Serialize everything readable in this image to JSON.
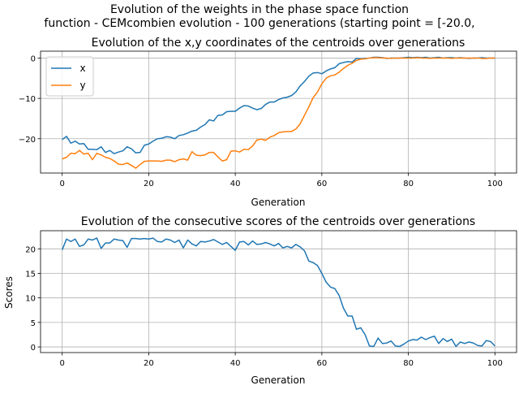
{
  "figure": {
    "suptitle_line1": "Evolution of the weights in the phase space  function",
    "suptitle_line2": "function - CEMcombien evolution - 100 generations (starting point = [-20.0,"
  },
  "chart_data": [
    {
      "type": "line",
      "title": "Evolution of the x,y coordinates of the centroids over generations",
      "xlabel": "Generation",
      "ylabel": "",
      "xlim": [
        -5,
        105
      ],
      "ylim": [
        -28.5,
        1.7
      ],
      "xticks": [
        0,
        20,
        40,
        60,
        80,
        100
      ],
      "yticks": [
        0,
        -10,
        -20
      ],
      "ytick_labels": [
        "0",
        "−10",
        "−20"
      ],
      "grid": true,
      "legend_position": "upper-left",
      "x": [
        0,
        1,
        2,
        3,
        4,
        5,
        6,
        7,
        8,
        9,
        10,
        11,
        12,
        13,
        14,
        15,
        16,
        17,
        18,
        19,
        20,
        21,
        22,
        23,
        24,
        25,
        26,
        27,
        28,
        29,
        30,
        31,
        32,
        33,
        34,
        35,
        36,
        37,
        38,
        39,
        40,
        41,
        42,
        43,
        44,
        45,
        46,
        47,
        48,
        49,
        50,
        51,
        52,
        53,
        54,
        55,
        56,
        57,
        58,
        59,
        60,
        61,
        62,
        63,
        64,
        65,
        66,
        67,
        68,
        69,
        70,
        71,
        72,
        73,
        74,
        75,
        76,
        77,
        78,
        79,
        80,
        81,
        82,
        83,
        84,
        85,
        86,
        87,
        88,
        89,
        90,
        91,
        92,
        93,
        94,
        95,
        96,
        97,
        98,
        99,
        100
      ],
      "series": [
        {
          "name": "x",
          "color": "#1f77b4",
          "values": [
            -20.2,
            -19.4,
            -21.1,
            -20.6,
            -21.3,
            -21.2,
            -22.6,
            -22.6,
            -22.7,
            -22.0,
            -23.4,
            -22.9,
            -23.7,
            -23.3,
            -23.0,
            -22.0,
            -22.5,
            -23.5,
            -23.4,
            -21.6,
            -21.3,
            -20.6,
            -20.0,
            -19.9,
            -19.5,
            -19.6,
            -20.0,
            -19.2,
            -19.0,
            -18.6,
            -18.1,
            -17.9,
            -17.1,
            -16.5,
            -15.3,
            -15.6,
            -14.2,
            -14.1,
            -13.3,
            -13.2,
            -13.2,
            -12.4,
            -11.8,
            -11.9,
            -12.4,
            -12.8,
            -12.5,
            -11.5,
            -10.9,
            -10.9,
            -10.3,
            -9.9,
            -9.7,
            -9.3,
            -8.4,
            -6.9,
            -5.8,
            -4.5,
            -3.7,
            -3.6,
            -3.9,
            -3.2,
            -2.7,
            -2.4,
            -1.4,
            -1.1,
            -0.9,
            -1.0,
            -0.1,
            -0.2,
            -0.1,
            0.0,
            0.2,
            0.2,
            0.1,
            -0.1,
            0.0,
            0.0,
            0.0,
            0.1,
            0.2,
            0.1,
            0.2,
            0.1,
            0.2,
            0.0,
            0.1,
            0.2,
            0.0,
            0.1,
            0.1,
            0.0,
            0.1,
            0.0,
            -0.1,
            0.0,
            0.0,
            0.1,
            0.0,
            0.0,
            0.0
          ]
        },
        {
          "name": "y",
          "color": "#ff7f0e",
          "values": [
            -25.0,
            -24.6,
            -23.6,
            -23.7,
            -22.9,
            -23.8,
            -23.6,
            -25.2,
            -23.6,
            -24.0,
            -24.6,
            -24.9,
            -25.5,
            -26.3,
            -26.4,
            -26.0,
            -26.6,
            -27.3,
            -26.4,
            -25.6,
            -25.5,
            -25.5,
            -25.5,
            -25.6,
            -25.3,
            -25.3,
            -25.7,
            -25.2,
            -25.0,
            -25.3,
            -23.2,
            -24.1,
            -24.2,
            -24.0,
            -23.4,
            -23.4,
            -24.5,
            -25.5,
            -25.2,
            -23.1,
            -23.0,
            -23.3,
            -22.6,
            -22.7,
            -21.8,
            -20.3,
            -20.1,
            -20.4,
            -19.6,
            -19.2,
            -18.5,
            -18.3,
            -18.2,
            -18.2,
            -17.6,
            -16.3,
            -14.2,
            -12.1,
            -9.8,
            -8.4,
            -6.4,
            -5.0,
            -4.4,
            -4.2,
            -3.5,
            -2.6,
            -1.8,
            -1.3,
            -0.6,
            -0.3,
            -0.2,
            0.0,
            0.1,
            0.1,
            0.0,
            0.0,
            -0.1,
            0.0,
            0.0,
            0.0,
            0.0,
            0.0,
            0.1,
            0.0,
            0.0,
            -0.1,
            0.0,
            0.0,
            0.0,
            0.0,
            -0.1,
            0.0,
            0.0,
            0.0,
            0.0,
            0.0,
            0.0,
            -0.1,
            -0.1,
            0.0,
            0.0
          ]
        }
      ]
    },
    {
      "type": "line",
      "title": "Evolution of the consecutive scores of the centroids over generations",
      "xlabel": "Generation",
      "ylabel": "Scores",
      "xlim": [
        -5,
        105
      ],
      "ylim": [
        -1.15,
        23.7
      ],
      "xticks": [
        0,
        20,
        40,
        60,
        80,
        100
      ],
      "yticks": [
        0,
        5,
        10,
        15,
        20
      ],
      "ytick_labels": [
        "0",
        "5",
        "10",
        "15",
        "20"
      ],
      "grid": true,
      "x": [
        0,
        1,
        2,
        3,
        4,
        5,
        6,
        7,
        8,
        9,
        10,
        11,
        12,
        13,
        14,
        15,
        16,
        17,
        18,
        19,
        20,
        21,
        22,
        23,
        24,
        25,
        26,
        27,
        28,
        29,
        30,
        31,
        32,
        33,
        34,
        35,
        36,
        37,
        38,
        39,
        40,
        41,
        42,
        43,
        44,
        45,
        46,
        47,
        48,
        49,
        50,
        51,
        52,
        53,
        54,
        55,
        56,
        57,
        58,
        59,
        60,
        61,
        62,
        63,
        64,
        65,
        66,
        67,
        68,
        69,
        70,
        71,
        72,
        73,
        74,
        75,
        76,
        77,
        78,
        79,
        80,
        81,
        82,
        83,
        84,
        85,
        86,
        87,
        88,
        89,
        90,
        91,
        92,
        93,
        94,
        95,
        96,
        97,
        98,
        99,
        100
      ],
      "series": [
        {
          "name": "",
          "color": "#1f77b4",
          "values": [
            19.8,
            22.0,
            21.5,
            22.0,
            20.5,
            20.8,
            22.0,
            21.8,
            22.2,
            20.1,
            21.2,
            21.2,
            22.0,
            21.8,
            21.7,
            20.3,
            22.1,
            22.1,
            22.0,
            22.1,
            22.0,
            22.2,
            21.5,
            21.4,
            22.0,
            21.8,
            21.3,
            21.8,
            20.2,
            21.8,
            21.0,
            20.6,
            21.5,
            21.4,
            21.6,
            21.9,
            21.4,
            20.9,
            21.3,
            20.5,
            19.7,
            21.4,
            21.5,
            20.8,
            21.6,
            20.9,
            21.0,
            21.3,
            21.0,
            20.6,
            21.1,
            20.2,
            20.5,
            20.2,
            20.9,
            20.4,
            19.6,
            17.5,
            17.2,
            16.6,
            15.0,
            13.2,
            12.2,
            11.9,
            10.5,
            7.9,
            6.3,
            6.3,
            3.6,
            3.9,
            2.5,
            0.2,
            0.1,
            1.8,
            0.7,
            0.8,
            1.2,
            0.2,
            0.1,
            0.6,
            1.2,
            1.5,
            1.4,
            2.0,
            1.5,
            1.9,
            2.2,
            0.7,
            1.7,
            1.1,
            1.6,
            0.1,
            1.0,
            0.7,
            1.0,
            0.8,
            0.3,
            0.2,
            1.3,
            1.1,
            0.2
          ]
        }
      ]
    }
  ]
}
